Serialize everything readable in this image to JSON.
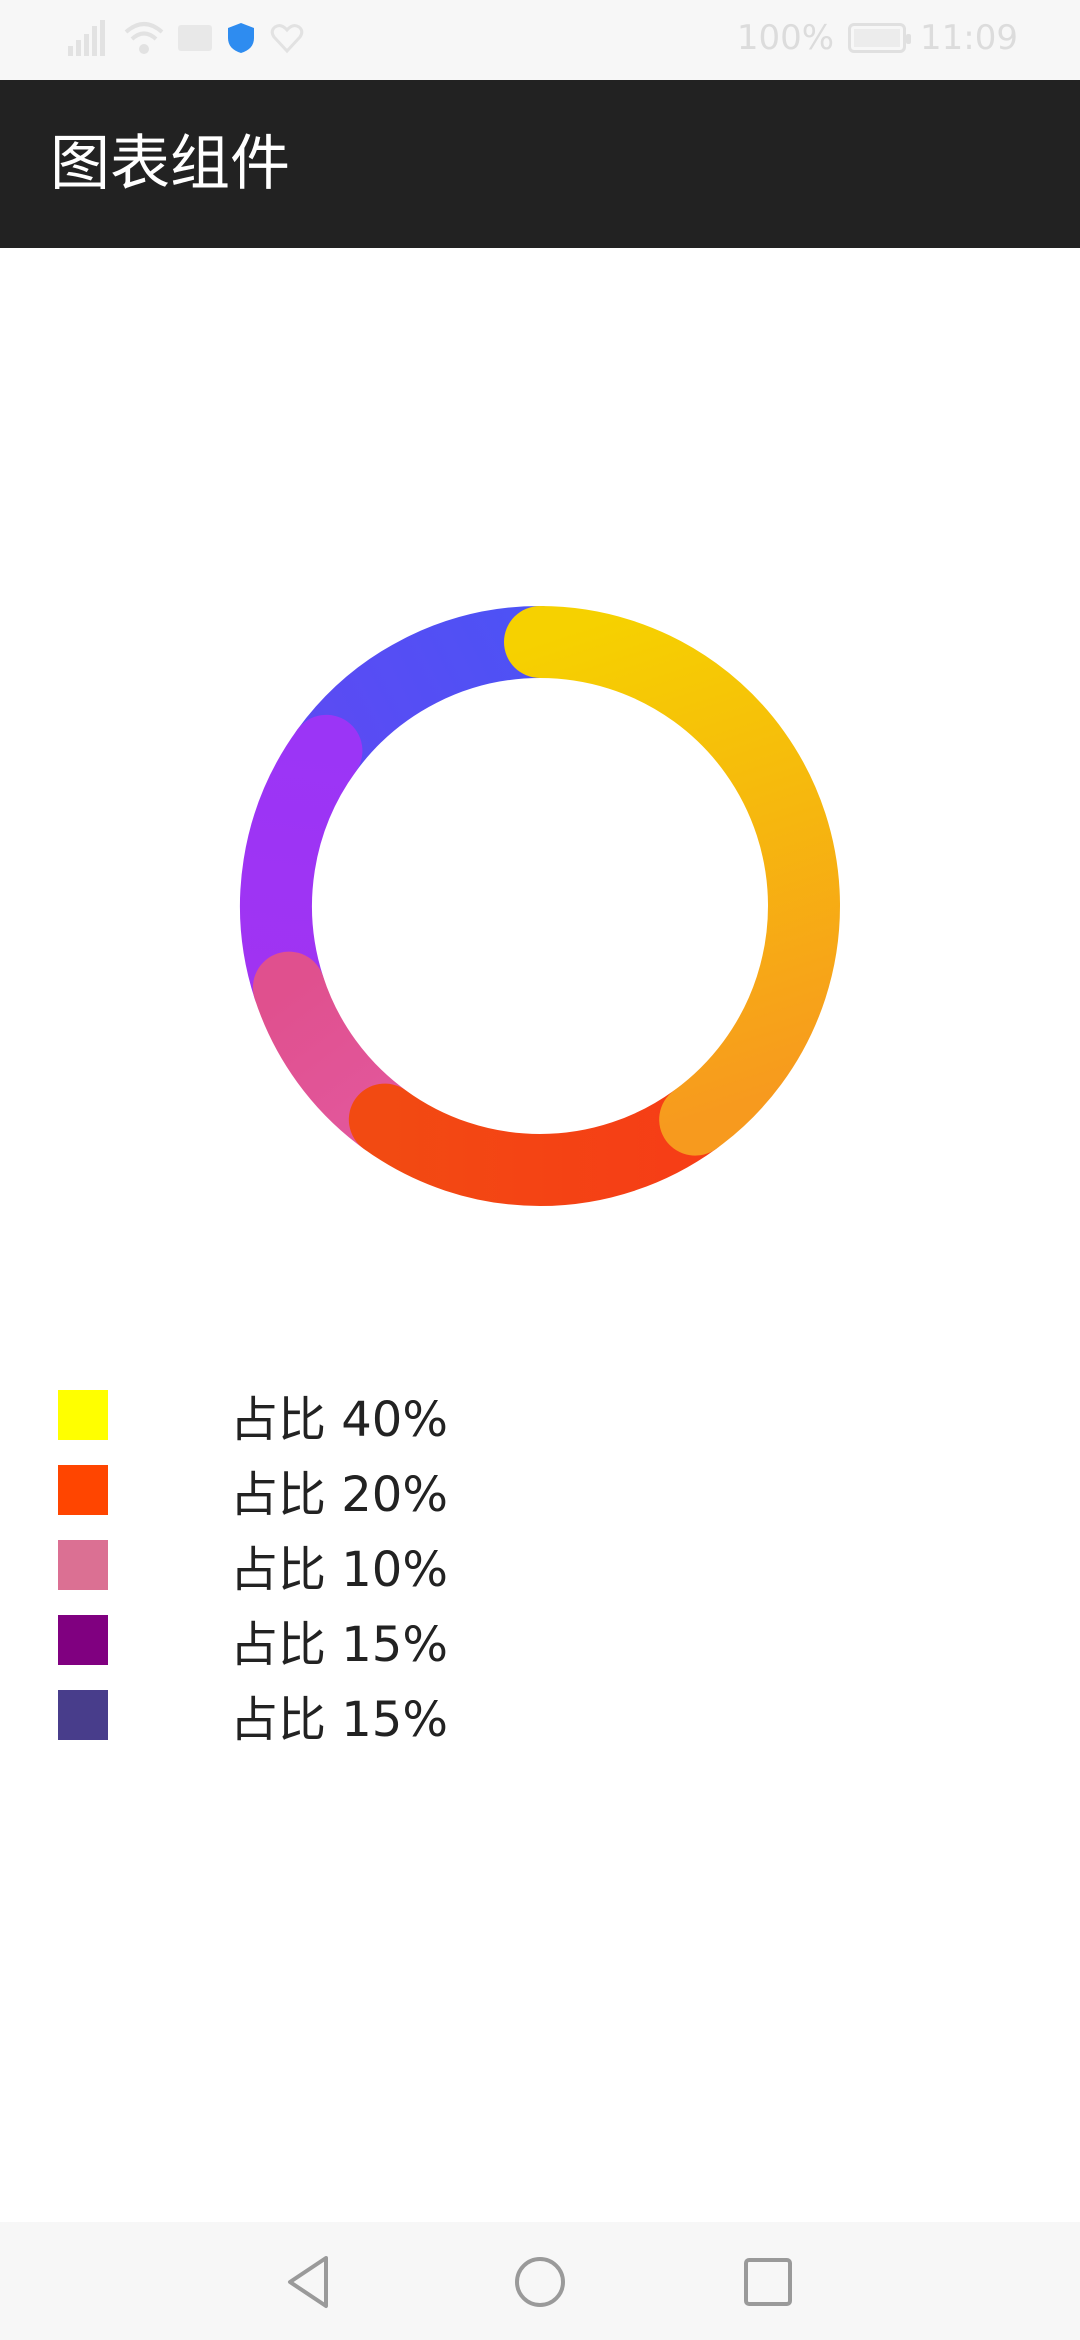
{
  "status_bar": {
    "battery": "100%",
    "time": "11:09",
    "icons": [
      "signal-icon",
      "wifi-icon",
      "mail-icon",
      "shield-icon",
      "heart-icon",
      "battery-icon"
    ]
  },
  "app_bar": {
    "title": "图表组件"
  },
  "chart_data": {
    "type": "pie",
    "variant": "donut",
    "start_angle": "top",
    "direction": "clockwise",
    "slices": [
      {
        "label": "占比 40%",
        "value": 40,
        "colors": [
          "#f6d100",
          "#f79a1e"
        ],
        "legend_color": "#ffff00"
      },
      {
        "label": "占比 20%",
        "value": 20,
        "colors": [
          "#f63d16",
          "#f24a12"
        ],
        "legend_color": "#ff4500"
      },
      {
        "label": "占比 10%",
        "value": 10,
        "colors": [
          "#e2579c",
          "#e0508e"
        ],
        "legend_color": "#db7093"
      },
      {
        "label": "占比 15%",
        "value": 15,
        "colors": [
          "#a033f2",
          "#9b35f6"
        ],
        "legend_color": "#800080"
      },
      {
        "label": "占比 15%",
        "value": 15,
        "colors": [
          "#5b4bf3",
          "#4d52f5"
        ],
        "legend_color": "#483d8b"
      }
    ]
  },
  "legend": {
    "position": "bottom-left"
  },
  "nav_bar": {
    "icons": [
      "back-icon",
      "home-icon",
      "recents-icon"
    ]
  }
}
